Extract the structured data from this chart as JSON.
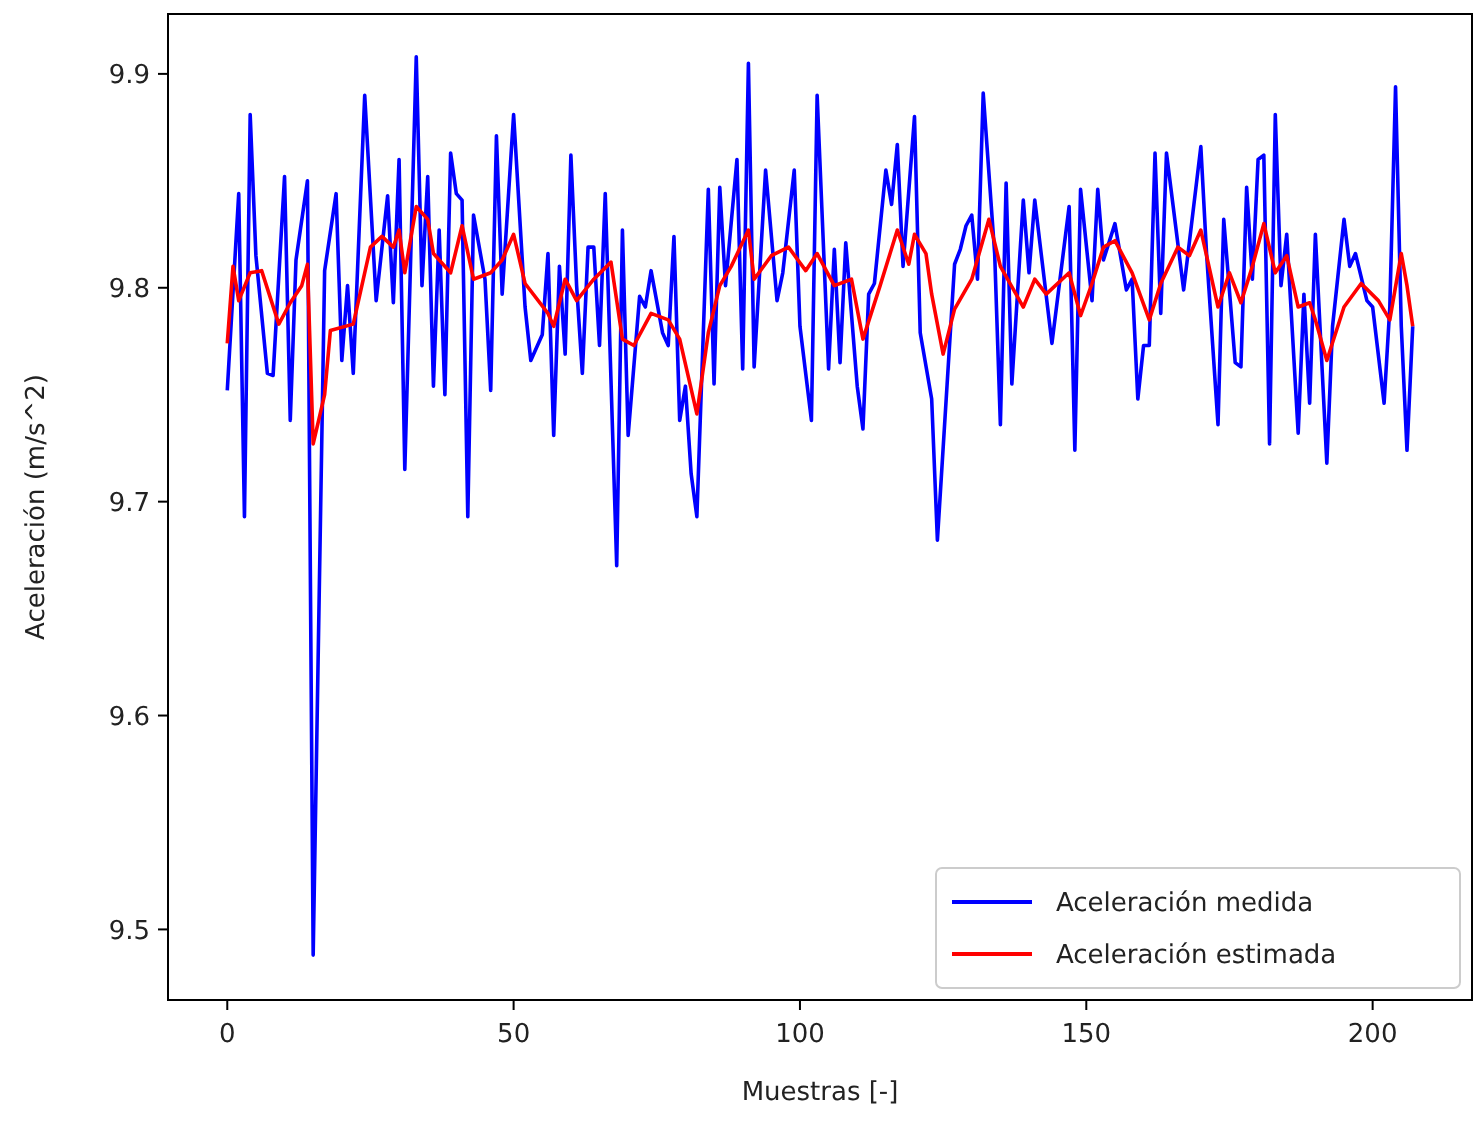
{
  "chart_data": {
    "type": "line",
    "xlabel": "Muestras [-]",
    "ylabel": "Aceleración (m/s^2)",
    "xlim": [
      -10.35,
      217.35
    ],
    "xticks": [
      0,
      50,
      100,
      150,
      200
    ],
    "ylim": [
      9.467,
      9.928
    ],
    "yticks": [
      9.5,
      9.6,
      9.7,
      9.8,
      9.9
    ],
    "grid": false,
    "legend": "bottom right",
    "marker": "none",
    "line_style": "solid",
    "series": [
      {
        "name": "Aceleración medida",
        "color": "#0000ff",
        "x": [
          0,
          2,
          3,
          4,
          5,
          7,
          8,
          10,
          11,
          12,
          14,
          15,
          17,
          19,
          20,
          21,
          22,
          24,
          26,
          28,
          29,
          30,
          31,
          33,
          34,
          35,
          36,
          37,
          38,
          39,
          40,
          41,
          42,
          43,
          45,
          46,
          47,
          48,
          50,
          52,
          53,
          55,
          56,
          57,
          58,
          59,
          60,
          61,
          62,
          63,
          64,
          65,
          66,
          68,
          69,
          70,
          72,
          73,
          74,
          76,
          77,
          78,
          79,
          80,
          81,
          82,
          84,
          85,
          86,
          87,
          89,
          90,
          91,
          92,
          94,
          96,
          97,
          99,
          100,
          102,
          103,
          105,
          106,
          107,
          108,
          110,
          111,
          112,
          113,
          115,
          116,
          117,
          118,
          120,
          121,
          123,
          124,
          127,
          128,
          129,
          130,
          131,
          132,
          134,
          135,
          136,
          137,
          139,
          140,
          141,
          144,
          147,
          148,
          149,
          151,
          152,
          153,
          155,
          157,
          158,
          159,
          160,
          161,
          162,
          163,
          164,
          167,
          170,
          171,
          173,
          174,
          176,
          177,
          178,
          179,
          180,
          181,
          182,
          183,
          184,
          185,
          187,
          188,
          189,
          190,
          192,
          193,
          195,
          196,
          197,
          199,
          200,
          202,
          203,
          204,
          205,
          206,
          207
        ],
        "values": [
          9.752,
          9.844,
          9.693,
          9.881,
          9.815,
          9.76,
          9.759,
          9.852,
          9.738,
          9.813,
          9.85,
          9.488,
          9.808,
          9.844,
          9.766,
          9.801,
          9.76,
          9.89,
          9.794,
          9.843,
          9.793,
          9.86,
          9.715,
          9.908,
          9.801,
          9.852,
          9.754,
          9.827,
          9.75,
          9.863,
          9.844,
          9.841,
          9.693,
          9.834,
          9.804,
          9.752,
          9.871,
          9.797,
          9.881,
          9.791,
          9.766,
          9.778,
          9.816,
          9.731,
          9.81,
          9.769,
          9.862,
          9.801,
          9.76,
          9.819,
          9.819,
          9.773,
          9.844,
          9.67,
          9.827,
          9.731,
          9.796,
          9.791,
          9.808,
          9.779,
          9.773,
          9.824,
          9.738,
          9.754,
          9.713,
          9.693,
          9.846,
          9.755,
          9.847,
          9.801,
          9.86,
          9.762,
          9.905,
          9.763,
          9.855,
          9.794,
          9.807,
          9.855,
          9.782,
          9.738,
          9.89,
          9.762,
          9.818,
          9.765,
          9.821,
          9.754,
          9.734,
          9.797,
          9.802,
          9.855,
          9.839,
          9.867,
          9.81,
          9.88,
          9.779,
          9.748,
          9.682,
          9.811,
          9.818,
          9.829,
          9.834,
          9.804,
          9.891,
          9.816,
          9.736,
          9.849,
          9.755,
          9.841,
          9.807,
          9.841,
          9.774,
          9.838,
          9.724,
          9.846,
          9.794,
          9.846,
          9.813,
          9.83,
          9.799,
          9.804,
          9.748,
          9.773,
          9.773,
          9.863,
          9.788,
          9.863,
          9.799,
          9.866,
          9.816,
          9.736,
          9.832,
          9.765,
          9.763,
          9.847,
          9.804,
          9.86,
          9.862,
          9.727,
          9.881,
          9.801,
          9.825,
          9.732,
          9.797,
          9.746,
          9.825,
          9.718,
          9.782,
          9.832,
          9.81,
          9.816,
          9.794,
          9.791,
          9.746,
          9.791,
          9.894,
          9.782,
          9.724,
          9.782
        ]
      },
      {
        "name": "Aceleración estimada",
        "color": "#ff0000",
        "x": [
          0,
          1,
          2,
          4,
          6,
          9,
          11,
          13,
          14,
          15,
          17,
          18,
          22,
          25,
          27,
          29,
          30,
          31,
          33,
          35,
          36,
          39,
          41,
          43,
          46,
          48,
          50,
          52,
          56,
          57,
          59,
          61,
          64,
          67,
          69,
          71,
          74,
          77,
          79,
          82,
          84,
          86,
          88,
          91,
          92,
          95,
          98,
          101,
          103,
          106,
          109,
          111,
          114,
          117,
          119,
          120,
          122,
          123,
          125,
          127,
          130,
          133,
          135,
          139,
          141,
          143,
          147,
          149,
          151,
          153,
          155,
          158,
          161,
          163,
          166,
          168,
          170,
          173,
          175,
          177,
          179,
          181,
          183,
          185,
          187,
          189,
          190,
          192,
          195,
          198,
          201,
          203,
          205,
          206,
          207
        ],
        "values": [
          9.774,
          9.81,
          9.794,
          9.807,
          9.808,
          9.783,
          9.793,
          9.801,
          9.811,
          9.727,
          9.75,
          9.78,
          9.783,
          9.819,
          9.824,
          9.819,
          9.827,
          9.807,
          9.838,
          9.832,
          9.816,
          9.807,
          9.829,
          9.804,
          9.807,
          9.813,
          9.825,
          9.802,
          9.788,
          9.782,
          9.804,
          9.794,
          9.804,
          9.812,
          9.776,
          9.773,
          9.788,
          9.785,
          9.776,
          9.741,
          9.779,
          9.801,
          9.81,
          9.827,
          9.804,
          9.815,
          9.819,
          9.808,
          9.816,
          9.801,
          9.804,
          9.776,
          9.801,
          9.827,
          9.811,
          9.825,
          9.816,
          9.797,
          9.769,
          9.79,
          9.804,
          9.832,
          9.81,
          9.791,
          9.804,
          9.797,
          9.807,
          9.787,
          9.802,
          9.819,
          9.822,
          9.807,
          9.785,
          9.802,
          9.819,
          9.815,
          9.827,
          9.791,
          9.807,
          9.793,
          9.81,
          9.83,
          9.807,
          9.815,
          9.791,
          9.793,
          9.785,
          9.766,
          9.791,
          9.802,
          9.794,
          9.785,
          9.816,
          9.801,
          9.782
        ]
      }
    ]
  }
}
